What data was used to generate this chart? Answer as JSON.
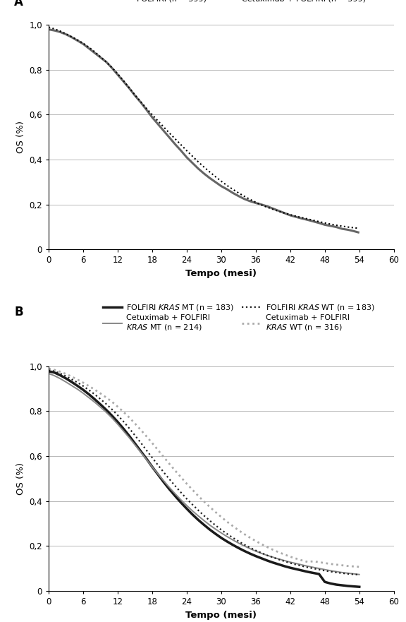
{
  "panel_A": {
    "title_label": "A",
    "folfiri": {
      "x": [
        0,
        1,
        2,
        3,
        4,
        5,
        6,
        7,
        8,
        9,
        10,
        11,
        12,
        13,
        14,
        15,
        16,
        17,
        18,
        19,
        20,
        21,
        22,
        23,
        24,
        25,
        26,
        27,
        28,
        29,
        30,
        31,
        32,
        33,
        34,
        35,
        36,
        37,
        38,
        39,
        40,
        41,
        42,
        43,
        44,
        45,
        46,
        47,
        48,
        49,
        50,
        51,
        52,
        53,
        54
      ],
      "y": [
        0.98,
        0.975,
        0.968,
        0.958,
        0.945,
        0.93,
        0.915,
        0.895,
        0.875,
        0.855,
        0.835,
        0.808,
        0.778,
        0.748,
        0.718,
        0.685,
        0.655,
        0.622,
        0.588,
        0.558,
        0.528,
        0.498,
        0.468,
        0.44,
        0.41,
        0.385,
        0.36,
        0.338,
        0.318,
        0.3,
        0.282,
        0.268,
        0.252,
        0.238,
        0.225,
        0.215,
        0.207,
        0.2,
        0.192,
        0.182,
        0.172,
        0.162,
        0.152,
        0.145,
        0.138,
        0.132,
        0.125,
        0.118,
        0.11,
        0.105,
        0.1,
        0.092,
        0.088,
        0.082,
        0.075
      ]
    },
    "cetuximab_folfiri": {
      "x": [
        0,
        1,
        2,
        3,
        4,
        5,
        6,
        7,
        8,
        9,
        10,
        11,
        12,
        13,
        14,
        15,
        16,
        17,
        18,
        19,
        20,
        21,
        22,
        23,
        24,
        25,
        26,
        27,
        28,
        29,
        30,
        31,
        32,
        33,
        34,
        35,
        36,
        37,
        38,
        39,
        40,
        41,
        42,
        43,
        44,
        45,
        46,
        47,
        48,
        49,
        50,
        51,
        52,
        53,
        54
      ],
      "y": [
        0.99,
        0.982,
        0.972,
        0.96,
        0.947,
        0.933,
        0.918,
        0.9,
        0.88,
        0.858,
        0.835,
        0.81,
        0.782,
        0.752,
        0.72,
        0.688,
        0.658,
        0.628,
        0.6,
        0.572,
        0.545,
        0.518,
        0.492,
        0.466,
        0.44,
        0.415,
        0.39,
        0.367,
        0.345,
        0.324,
        0.304,
        0.285,
        0.268,
        0.252,
        0.237,
        0.223,
        0.21,
        0.198,
        0.188,
        0.179,
        0.17,
        0.162,
        0.155,
        0.148,
        0.142,
        0.136,
        0.13,
        0.124,
        0.118,
        0.113,
        0.108,
        0.104,
        0.1,
        0.097,
        0.094
      ]
    },
    "folfiri_color": "#666666",
    "cetuximab_color": "#000000",
    "folfiri_lw": 2.2,
    "cetuximab_lw": 1.5,
    "xlabel": "Tempo (mesi)",
    "ylabel": "OS (%)",
    "xlim": [
      0,
      60
    ],
    "ylim": [
      0,
      1.0
    ],
    "yticks": [
      0,
      0.2,
      0.4,
      0.6,
      0.8,
      1.0
    ],
    "ytick_labels": [
      "0",
      "0,2",
      "0,4",
      "0,6",
      "0,8",
      "1,0"
    ],
    "xticks": [
      0,
      6,
      12,
      18,
      24,
      30,
      36,
      42,
      48,
      54,
      60
    ]
  },
  "panel_B": {
    "title_label": "B",
    "folfiri_mt": {
      "x": [
        0,
        1,
        2,
        3,
        4,
        5,
        6,
        7,
        8,
        9,
        10,
        11,
        12,
        13,
        14,
        15,
        16,
        17,
        18,
        19,
        20,
        21,
        22,
        23,
        24,
        25,
        26,
        27,
        28,
        29,
        30,
        31,
        32,
        33,
        34,
        35,
        36,
        37,
        38,
        39,
        40,
        41,
        42,
        43,
        44,
        45,
        46,
        47,
        48,
        49,
        50,
        51,
        52,
        53,
        54
      ],
      "y": [
        0.978,
        0.972,
        0.96,
        0.946,
        0.93,
        0.913,
        0.895,
        0.875,
        0.853,
        0.83,
        0.806,
        0.78,
        0.752,
        0.722,
        0.69,
        0.656,
        0.622,
        0.588,
        0.552,
        0.518,
        0.484,
        0.452,
        0.422,
        0.393,
        0.366,
        0.34,
        0.316,
        0.294,
        0.273,
        0.254,
        0.236,
        0.22,
        0.205,
        0.191,
        0.178,
        0.166,
        0.155,
        0.145,
        0.135,
        0.126,
        0.118,
        0.11,
        0.103,
        0.097,
        0.091,
        0.085,
        0.08,
        0.075,
        0.04,
        0.033,
        0.028,
        0.025,
        0.022,
        0.02,
        0.018
      ]
    },
    "cetuximab_folfiri_mt": {
      "x": [
        0,
        1,
        2,
        3,
        4,
        5,
        6,
        7,
        8,
        9,
        10,
        11,
        12,
        13,
        14,
        15,
        16,
        17,
        18,
        19,
        20,
        21,
        22,
        23,
        24,
        25,
        26,
        27,
        28,
        29,
        30,
        31,
        32,
        33,
        34,
        35,
        36,
        37,
        38,
        39,
        40,
        41,
        42,
        43,
        44,
        45,
        46,
        47,
        48,
        49,
        50,
        51,
        52,
        53,
        54
      ],
      "y": [
        0.968,
        0.958,
        0.945,
        0.93,
        0.914,
        0.898,
        0.88,
        0.86,
        0.84,
        0.818,
        0.795,
        0.77,
        0.742,
        0.712,
        0.682,
        0.65,
        0.618,
        0.585,
        0.552,
        0.52,
        0.49,
        0.46,
        0.432,
        0.405,
        0.38,
        0.356,
        0.334,
        0.313,
        0.293,
        0.275,
        0.258,
        0.242,
        0.227,
        0.213,
        0.2,
        0.188,
        0.177,
        0.167,
        0.158,
        0.15,
        0.142,
        0.135,
        0.128,
        0.122,
        0.116,
        0.11,
        0.105,
        0.1,
        0.095,
        0.09,
        0.086,
        0.082,
        0.079,
        0.076,
        0.073
      ]
    },
    "folfiri_wt": {
      "x": [
        0,
        1,
        2,
        3,
        4,
        5,
        6,
        7,
        8,
        9,
        10,
        11,
        12,
        13,
        14,
        15,
        16,
        17,
        18,
        19,
        20,
        21,
        22,
        23,
        24,
        25,
        26,
        27,
        28,
        29,
        30,
        31,
        32,
        33,
        34,
        35,
        36,
        37,
        38,
        39,
        40,
        41,
        42,
        43,
        44,
        45,
        46,
        47,
        48,
        49,
        50,
        51,
        52,
        53,
        54
      ],
      "y": [
        0.985,
        0.978,
        0.968,
        0.956,
        0.942,
        0.928,
        0.912,
        0.894,
        0.875,
        0.854,
        0.832,
        0.808,
        0.782,
        0.754,
        0.724,
        0.692,
        0.66,
        0.626,
        0.593,
        0.56,
        0.528,
        0.497,
        0.467,
        0.438,
        0.41,
        0.384,
        0.359,
        0.335,
        0.313,
        0.292,
        0.272,
        0.254,
        0.237,
        0.221,
        0.206,
        0.193,
        0.18,
        0.169,
        0.158,
        0.149,
        0.14,
        0.132,
        0.124,
        0.117,
        0.111,
        0.105,
        0.1,
        0.095,
        0.09,
        0.086,
        0.082,
        0.079,
        0.076,
        0.074,
        0.072
      ]
    },
    "cetuximab_folfiri_wt": {
      "x": [
        0,
        1,
        2,
        3,
        4,
        5,
        6,
        7,
        8,
        9,
        10,
        11,
        12,
        13,
        14,
        15,
        16,
        17,
        18,
        19,
        20,
        21,
        22,
        23,
        24,
        25,
        26,
        27,
        28,
        29,
        30,
        31,
        32,
        33,
        34,
        35,
        36,
        37,
        38,
        39,
        40,
        41,
        42,
        43,
        44,
        45,
        46,
        47,
        48,
        49,
        50,
        51,
        52,
        53,
        54
      ],
      "y": [
        0.99,
        0.984,
        0.976,
        0.966,
        0.954,
        0.941,
        0.927,
        0.912,
        0.896,
        0.879,
        0.861,
        0.842,
        0.82,
        0.797,
        0.772,
        0.745,
        0.717,
        0.688,
        0.658,
        0.627,
        0.596,
        0.565,
        0.535,
        0.506,
        0.477,
        0.45,
        0.423,
        0.398,
        0.374,
        0.351,
        0.329,
        0.308,
        0.289,
        0.27,
        0.253,
        0.237,
        0.222,
        0.208,
        0.195,
        0.183,
        0.172,
        0.162,
        0.152,
        0.144,
        0.136,
        0.129,
        0.132,
        0.128,
        0.124,
        0.12,
        0.117,
        0.114,
        0.111,
        0.109,
        0.107
      ]
    },
    "folfiri_mt_color": "#1a1a1a",
    "cetuximab_mt_color": "#888888",
    "folfiri_wt_color": "#222222",
    "cetuximab_wt_color": "#aaaaaa",
    "folfiri_mt_lw": 2.5,
    "cetuximab_mt_lw": 1.4,
    "folfiri_wt_lw": 1.6,
    "cetuximab_wt_lw": 2.0,
    "xlabel": "Tempo (mesi)",
    "ylabel": "OS (%)",
    "xlim": [
      0,
      60
    ],
    "ylim": [
      0,
      1.0
    ],
    "yticks": [
      0,
      0.2,
      0.4,
      0.6,
      0.8,
      1.0
    ],
    "ytick_labels": [
      "0",
      "0,2",
      "0,4",
      "0,6",
      "0,8",
      "1,0"
    ],
    "xticks": [
      0,
      6,
      12,
      18,
      24,
      30,
      36,
      42,
      48,
      54,
      60
    ]
  },
  "bg_color": "#ffffff",
  "grid_color": "#777777",
  "grid_alpha": 0.6,
  "tick_fontsize": 8.5,
  "axis_label_fontsize": 9.5,
  "legend_fontsize": 8.0,
  "panel_label_fontsize": 12
}
